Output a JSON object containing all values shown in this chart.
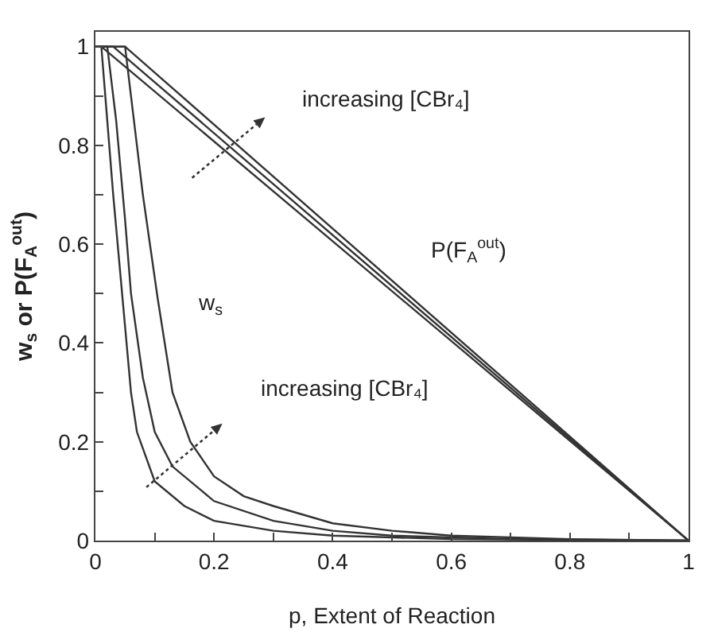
{
  "chart_data": {
    "type": "line",
    "xlabel": "p, Extent of Reaction",
    "ylabel": "w$_{s}$ or P(F$_{A}$$^{out}$)",
    "xlim": [
      0,
      1
    ],
    "ylim": [
      0,
      1.03
    ],
    "xticks": [
      0,
      {
        "value": 0.1,
        "label": null
      },
      0.2,
      {
        "value": 0.3,
        "label": null
      },
      0.4,
      {
        "value": 0.5,
        "label": null
      },
      0.6,
      {
        "value": 0.7,
        "label": null
      },
      0.8,
      {
        "value": 0.9,
        "label": null
      },
      1
    ],
    "yticks": [
      0,
      {
        "value": 0.1,
        "label": null
      },
      0.2,
      {
        "value": 0.3,
        "label": null
      },
      0.4,
      {
        "value": 0.5,
        "label": null
      },
      0.6,
      {
        "value": 0.7,
        "label": null
      },
      0.8,
      {
        "value": 0.9,
        "label": null
      },
      1
    ],
    "marker": "none",
    "line_style": "solid",
    "series": [
      {
        "color": "#333333",
        "x": [
          0,
          0.01,
          1
        ],
        "values": [
          1,
          1,
          0
        ]
      },
      {
        "color": "#333333",
        "x": [
          0,
          0.03,
          1
        ],
        "values": [
          1,
          1,
          0
        ]
      },
      {
        "color": "#333333",
        "x": [
          0,
          0.05,
          1
        ],
        "values": [
          1,
          1,
          0
        ]
      },
      {
        "color": "#333333",
        "x": [
          0,
          0.01,
          0.02,
          0.03,
          0.045,
          0.06,
          0.07,
          0.1,
          0.15,
          0.2,
          0.3,
          0.4,
          0.6,
          1
        ],
        "values": [
          1,
          1,
          0.85,
          0.7,
          0.5,
          0.3,
          0.22,
          0.12,
          0.07,
          0.04,
          0.02,
          0.01,
          0.003,
          0
        ]
      },
      {
        "color": "#333333",
        "x": [
          0,
          0.02,
          0.035,
          0.05,
          0.06,
          0.08,
          0.1,
          0.13,
          0.2,
          0.3,
          0.4,
          0.5,
          0.7,
          1
        ],
        "values": [
          1,
          1,
          0.85,
          0.65,
          0.5,
          0.33,
          0.22,
          0.15,
          0.08,
          0.04,
          0.02,
          0.01,
          0.003,
          0
        ]
      },
      {
        "color": "#333333",
        "x": [
          0,
          0.05,
          0.06,
          0.08,
          0.105,
          0.13,
          0.16,
          0.2,
          0.25,
          0.3,
          0.4,
          0.5,
          0.6,
          0.8,
          1
        ],
        "values": [
          1,
          1,
          0.9,
          0.7,
          0.49,
          0.3,
          0.2,
          0.13,
          0.09,
          0.07,
          0.035,
          0.02,
          0.01,
          0.003,
          0
        ]
      }
    ],
    "annotations": [
      "increasing [CBr₄]",
      "increasing [CBr₄]",
      "P(F$_{A}$$^{out}$)",
      "w$_{s}$"
    ]
  }
}
